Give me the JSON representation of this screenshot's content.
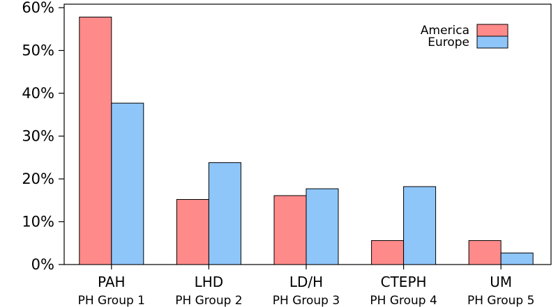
{
  "chart_data": {
    "type": "bar",
    "categories": [
      "PAH",
      "LHD",
      "LD/H",
      "CTEPH",
      "UM"
    ],
    "category_sublabels": [
      "PH Group 1",
      "PH Group 2",
      "PH Group 3",
      "PH Group 4",
      "PH Group 5"
    ],
    "series": [
      {
        "name": "America",
        "values": [
          57.8,
          15.2,
          16.1,
          5.6,
          5.6
        ],
        "color": "#ff8a8a"
      },
      {
        "name": "Europe",
        "values": [
          37.7,
          23.8,
          17.7,
          18.2,
          2.7
        ],
        "color": "#8ec6fa"
      }
    ],
    "ylim": [
      0,
      60
    ],
    "yticks": [
      0,
      10,
      20,
      30,
      40,
      50,
      60
    ],
    "ytick_labels": [
      "0%",
      "10%",
      "20%",
      "30%",
      "40%",
      "50%",
      "60%"
    ],
    "legend_position": "top-right",
    "grid": false
  }
}
